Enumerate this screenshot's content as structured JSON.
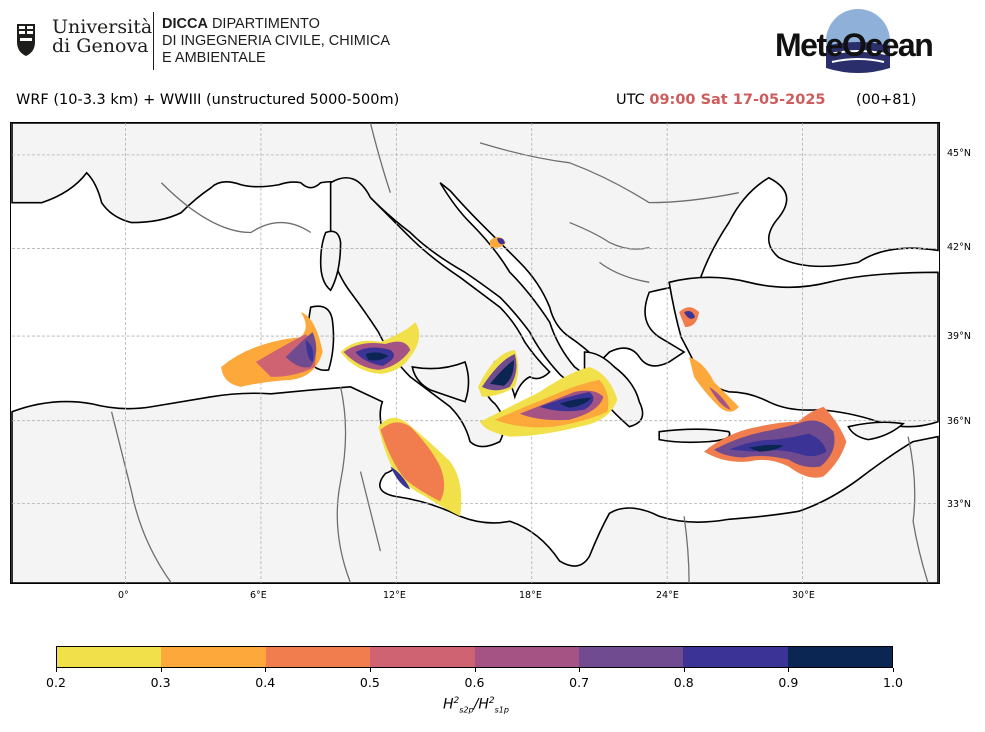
{
  "header": {
    "university_line1": "Università",
    "university_line2": "di Genova",
    "dept_bold": "DICCA",
    "dept_line1_rest": " DIPARTIMENTO",
    "dept_line2": "DI INGEGNERIA CIVILE, CHIMICA",
    "dept_line3": "E AMBIENTALE",
    "brand": "MeteOcean",
    "model_text": "WRF (10-3.3 km) + WWIII (unstructured 5000-500m)",
    "utc_prefix": "UTC",
    "utc_time": "09:00 Sat 17-05-2025",
    "run_text": "(00+81)"
  },
  "map": {
    "lat_labels": [
      "45°N",
      "42°N",
      "39°N",
      "36°N",
      "33°N"
    ],
    "lon_labels": [
      "0°",
      "6°E",
      "12°E",
      "18°E",
      "24°E",
      "30°E"
    ],
    "land_color": "#f4f4f4",
    "sea_color": "#ffffff",
    "coast_color": "#000000",
    "border_color": "#6e6e6e"
  },
  "colorbar": {
    "ticks": [
      "0.2",
      "0.3",
      "0.4",
      "0.5",
      "0.6",
      "0.7",
      "0.8",
      "0.9",
      "1.0"
    ],
    "colors": [
      "#f1e04a",
      "#fca83a",
      "#f17d4e",
      "#cf6371",
      "#a45384",
      "#714b8f",
      "#3b3496",
      "#0b2652"
    ],
    "label": "H²s2p/H²s1p"
  }
}
